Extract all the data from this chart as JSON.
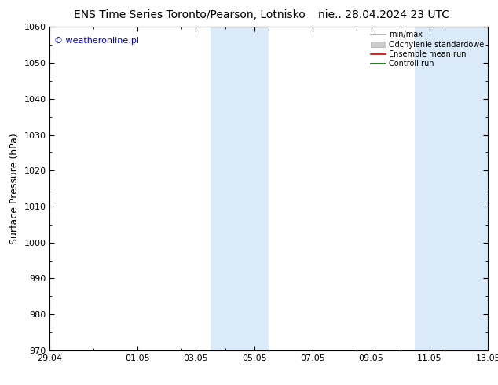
{
  "title_left": "ENS Time Series Toronto/Pearson, Lotnisko",
  "title_right": "nie.. 28.04.2024 23 UTC",
  "ylabel": "Surface Pressure (hPa)",
  "ylim": [
    970,
    1060
  ],
  "yticks": [
    970,
    980,
    990,
    1000,
    1010,
    1020,
    1030,
    1040,
    1050,
    1060
  ],
  "x_start": 0,
  "x_end": 15,
  "xtick_positions": [
    0,
    3,
    5,
    7,
    9,
    11,
    13,
    15
  ],
  "xtick_labels": [
    "29.04",
    "01.05",
    "03.05",
    "05.05",
    "07.05",
    "09.05",
    "11.05",
    "13.05"
  ],
  "watermark": "© weatheronline.pl",
  "bg_color": "#ffffff",
  "plot_bg_color": "#ffffff",
  "band_color": "#daeaf8",
  "band_ranges": [
    [
      5.5,
      7.5
    ],
    [
      12.5,
      15
    ]
  ],
  "legend_items": [
    {
      "label": "min/max",
      "color": "#aaaaaa",
      "type": "line"
    },
    {
      "label": "Odchylenie standardowe",
      "color": "#cccccc",
      "type": "rect"
    },
    {
      "label": "Ensemble mean run",
      "color": "#cc0000",
      "type": "line"
    },
    {
      "label": "Controll run",
      "color": "#006600",
      "type": "line"
    }
  ],
  "title_fontsize": 10,
  "tick_fontsize": 8,
  "ylabel_fontsize": 9,
  "watermark_fontsize": 8,
  "watermark_color": "#0000cc"
}
